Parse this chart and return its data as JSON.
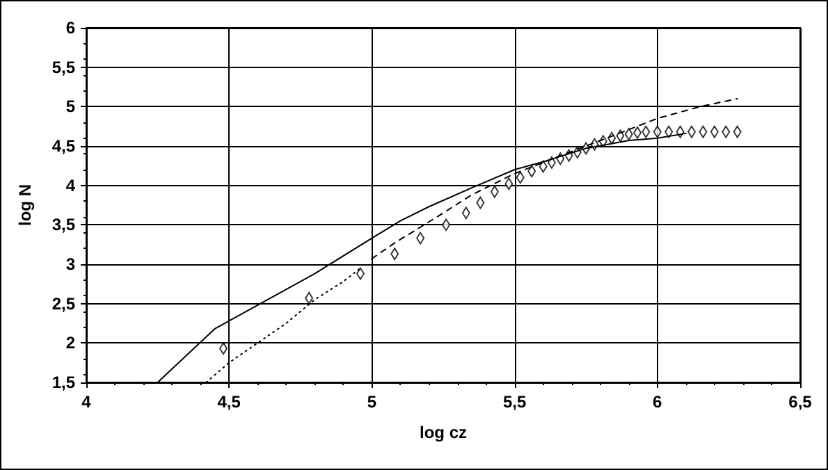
{
  "chart_data": {
    "type": "line",
    "xlabel": "log cz",
    "ylabel": "log N",
    "xlim": [
      4,
      6.5
    ],
    "ylim": [
      1.5,
      6
    ],
    "xticks": [
      4,
      {
        "value": 4.5,
        "label": "4,5"
      },
      5,
      {
        "value": 5.5,
        "label": "5,5"
      },
      6,
      {
        "value": 6.5,
        "label": "6,5"
      }
    ],
    "yticks": [
      {
        "value": 1.5,
        "label": "1,5"
      },
      2,
      {
        "value": 2.5,
        "label": "2,5"
      },
      3,
      {
        "value": 3.5,
        "label": "3,5"
      },
      4,
      {
        "value": 4.5,
        "label": "4,5"
      },
      5,
      {
        "value": 5.5,
        "label": "5,5"
      },
      6
    ],
    "grid": true,
    "marker": "none",
    "series": [
      {
        "line_style": "solid",
        "color": "#000000",
        "x": [
          4.25,
          4.45,
          4.62,
          4.8,
          5.0,
          5.1,
          5.2,
          5.35,
          5.5,
          5.6,
          5.75,
          5.9,
          6.0,
          6.1
        ],
        "values": [
          1.5,
          2.18,
          2.52,
          2.88,
          3.33,
          3.55,
          3.73,
          3.97,
          4.2,
          4.3,
          4.47,
          4.57,
          4.6,
          4.66
        ]
      },
      {
        "line_style": "dotted",
        "color": "#000000",
        "x": [
          4.42,
          4.5,
          4.6,
          4.7,
          4.8,
          4.9,
          4.96
        ],
        "values": [
          1.5,
          1.75,
          2.0,
          2.25,
          2.55,
          2.78,
          2.95
        ]
      },
      {
        "line_style": "dashed",
        "color": "#000000",
        "x": [
          5.0,
          5.08,
          5.17,
          5.25,
          5.35,
          5.5,
          5.62,
          5.75,
          5.88,
          6.0,
          6.15,
          6.28
        ],
        "values": [
          3.07,
          3.27,
          3.47,
          3.65,
          3.88,
          4.15,
          4.32,
          4.5,
          4.68,
          4.85,
          5.0,
          5.1
        ]
      },
      {
        "type": "scatter",
        "marker": "diamond",
        "color": "#000000",
        "x": [
          4.48,
          4.78,
          4.96,
          5.08,
          5.17,
          5.26,
          5.33,
          5.38,
          5.43,
          5.48,
          5.52,
          5.56,
          5.6,
          5.63,
          5.66,
          5.69,
          5.72,
          5.75,
          5.78,
          5.81,
          5.84,
          5.87,
          5.9,
          5.93,
          5.96,
          6.0,
          6.04,
          6.08,
          6.12,
          6.16,
          6.2,
          6.24,
          6.28
        ],
        "values": [
          1.93,
          2.57,
          2.88,
          3.13,
          3.33,
          3.5,
          3.65,
          3.78,
          3.92,
          4.02,
          4.1,
          4.18,
          4.24,
          4.29,
          4.34,
          4.38,
          4.42,
          4.47,
          4.52,
          4.56,
          4.6,
          4.63,
          4.65,
          4.67,
          4.68,
          4.68,
          4.68,
          4.68,
          4.68,
          4.68,
          4.68,
          4.68,
          4.68
        ]
      }
    ]
  }
}
